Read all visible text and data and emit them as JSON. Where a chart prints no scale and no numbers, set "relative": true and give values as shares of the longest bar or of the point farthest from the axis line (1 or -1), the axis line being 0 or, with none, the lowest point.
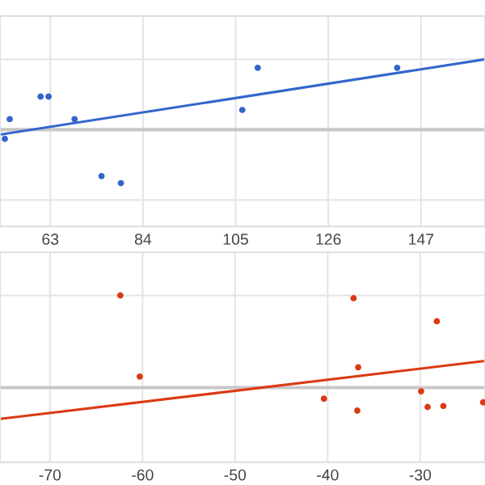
{
  "chart_data": [
    {
      "type": "scatter",
      "relative": true,
      "xlim": [
        51.6,
        161.5
      ],
      "xticks": [
        63,
        84,
        105,
        126,
        147
      ],
      "grid": true,
      "series": [
        {
          "marker": "circle",
          "color": "#3366cc",
          "x": [
            52.7,
            53.8,
            60.8,
            62.6,
            68.5,
            74.6,
            79,
            106.5,
            110,
            141.6
          ],
          "values": [
            -0.13,
            0.15,
            0.47,
            0.47,
            0.15,
            -0.66,
            -0.76,
            0.28,
            0.88,
            0.88
          ]
        },
        {
          "type": "line",
          "marker": "none",
          "color": "#3366cc",
          "x": [
            51.6,
            161.5
          ],
          "values": [
            -0.07,
            1
          ]
        }
      ]
    },
    {
      "type": "scatter",
      "relative": true,
      "xlim": [
        -75.4,
        -23
      ],
      "xticks": [
        -70,
        -60,
        -50,
        -40,
        -30
      ],
      "grid": true,
      "series": [
        {
          "marker": "circle",
          "color": "#dc3912",
          "x": [
            -62.4,
            -60.3,
            -40.4,
            -37.2,
            -36.7,
            -36.8,
            -29.9,
            -29.2,
            -28.2,
            -27.5,
            -23.2
          ],
          "values": [
            1,
            0.12,
            -0.12,
            0.97,
            0.22,
            -0.25,
            -0.04,
            -0.21,
            0.72,
            -0.2,
            -0.16
          ]
        },
        {
          "type": "line",
          "marker": "none",
          "color": "#dc3912",
          "x": [
            -75.4,
            -23
          ],
          "values": [
            -0.34,
            0.29
          ]
        }
      ]
    }
  ]
}
